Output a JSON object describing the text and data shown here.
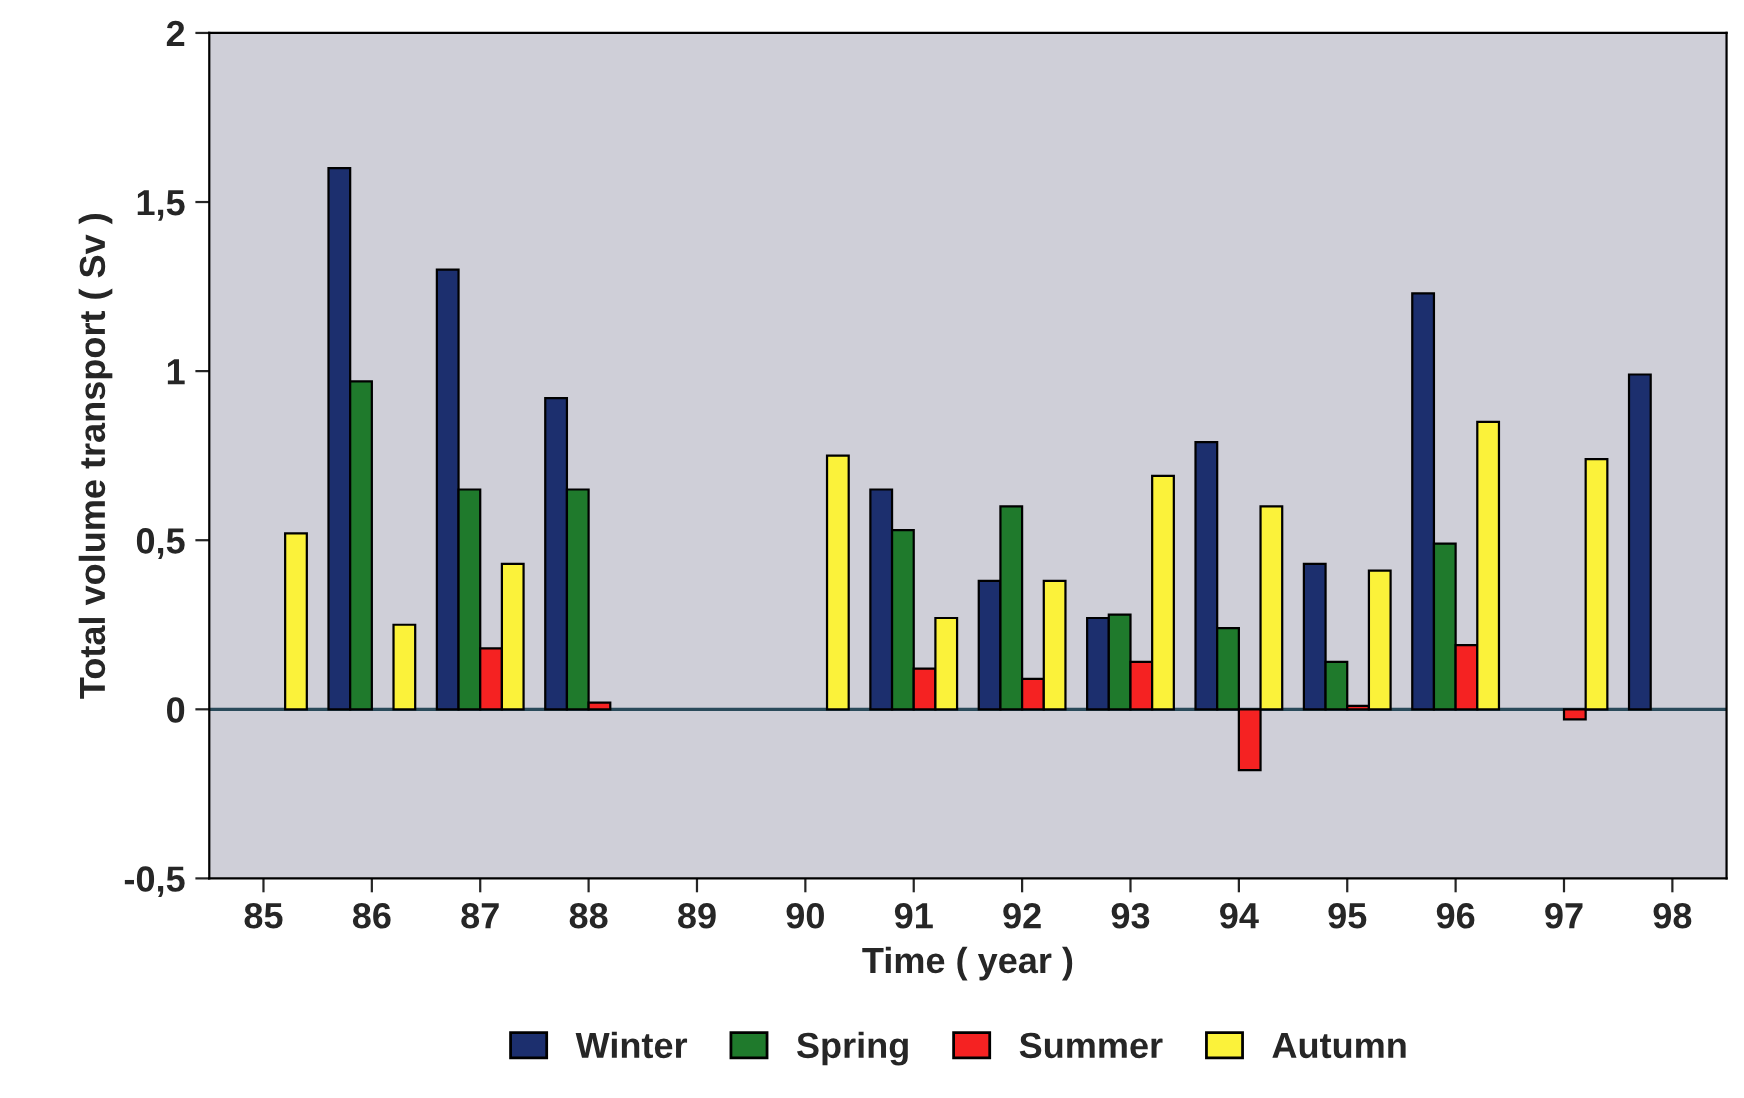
{
  "chart_data": {
    "type": "bar",
    "xlabel": "Time ( year )",
    "ylabel": "Total volume transport ( Sv )",
    "categories": [
      "85",
      "86",
      "87",
      "88",
      "89",
      "90",
      "91",
      "92",
      "93",
      "94",
      "95",
      "96",
      "97",
      "98"
    ],
    "series": [
      {
        "name": "Winter",
        "color": "#1c2f6e",
        "values": [
          null,
          1.6,
          1.3,
          0.92,
          null,
          null,
          0.65,
          0.38,
          0.27,
          0.79,
          0.43,
          1.23,
          null,
          0.99
        ]
      },
      {
        "name": "Spring",
        "color": "#1f7a2c",
        "values": [
          null,
          0.97,
          0.65,
          0.65,
          null,
          null,
          0.53,
          0.6,
          0.28,
          0.24,
          0.14,
          0.49,
          null,
          null
        ]
      },
      {
        "name": "Summer",
        "color": "#f52222",
        "values": [
          null,
          null,
          0.18,
          0.02,
          null,
          null,
          0.12,
          0.09,
          0.14,
          -0.18,
          0.01,
          0.19,
          -0.03,
          null
        ]
      },
      {
        "name": "Autumn",
        "color": "#fbf23a",
        "values": [
          0.52,
          0.25,
          0.43,
          null,
          null,
          0.75,
          0.27,
          0.38,
          0.69,
          0.6,
          0.41,
          0.85,
          0.74,
          null
        ]
      }
    ],
    "ylim": [
      -0.5,
      2
    ],
    "yticks": [
      {
        "value": -0.5,
        "label": "-0,5"
      },
      0,
      {
        "value": 0.5,
        "label": "0,5"
      },
      1,
      {
        "value": 1.5,
        "label": "1,5"
      },
      2
    ],
    "ref_lines": [
      {
        "axis": "y",
        "value": 0
      }
    ],
    "grid": false,
    "legend": "bottom"
  }
}
